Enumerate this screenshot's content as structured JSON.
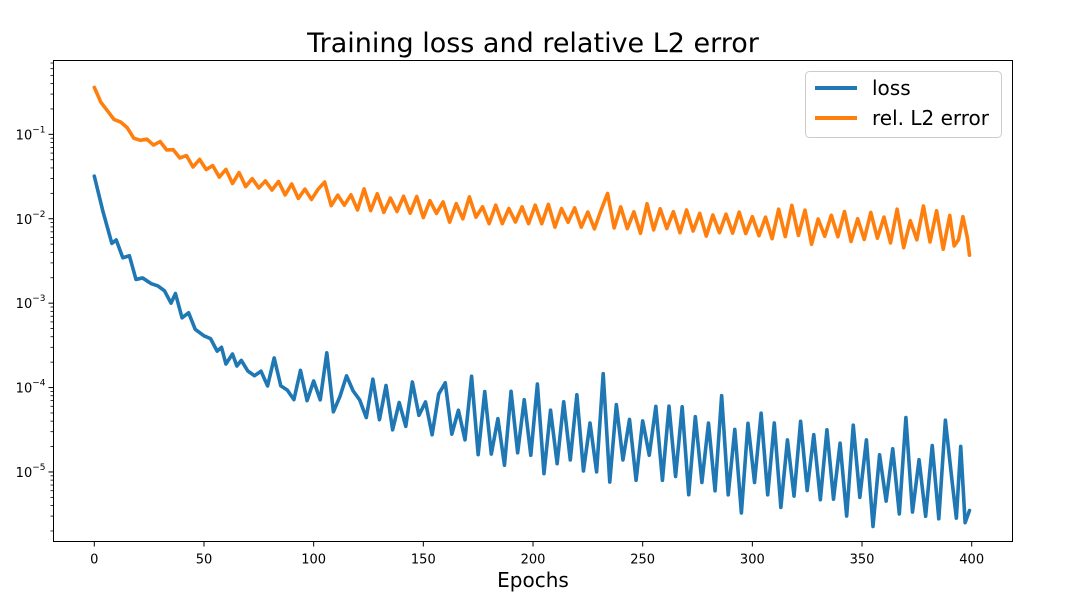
{
  "chart_data": {
    "type": "line",
    "title": "Training loss and relative L2 error",
    "xlabel": "Epochs",
    "ylabel": "",
    "yscale": "log",
    "xlim": [
      -18.6,
      418.6
    ],
    "ylim": [
      1.5e-06,
      0.75
    ],
    "xticks": [
      0,
      50,
      100,
      150,
      200,
      250,
      300,
      350,
      400
    ],
    "xtick_labels": [
      "0",
      "50",
      "100",
      "150",
      "200",
      "250",
      "300",
      "350",
      "400"
    ],
    "yticks": [
      0.1,
      0.01,
      0.001,
      0.0001,
      1e-05
    ],
    "ytick_labels": [
      {
        "base": "10",
        "exp": "−1"
      },
      {
        "base": "10",
        "exp": "−2"
      },
      {
        "base": "10",
        "exp": "−3"
      },
      {
        "base": "10",
        "exp": "−4"
      },
      {
        "base": "10",
        "exp": "−5"
      }
    ],
    "grid": false,
    "legend_position": "top-right",
    "series": [
      {
        "name": "loss",
        "color": "#1f77b4",
        "x": [
          0,
          4,
          8,
          10,
          13,
          16,
          19,
          22,
          26,
          29,
          32,
          35,
          37,
          40,
          43,
          46,
          50,
          53,
          56,
          58,
          60,
          63,
          65,
          67,
          70,
          73,
          76,
          79,
          82,
          85,
          88,
          91,
          94,
          97,
          100,
          103,
          106,
          109,
          112,
          115,
          118,
          121,
          124,
          127,
          130,
          133,
          136,
          139,
          142,
          145,
          148,
          151,
          154,
          157,
          160,
          163,
          166,
          169,
          172,
          175,
          178,
          181,
          184,
          187,
          190,
          193,
          196,
          199,
          202,
          205,
          208,
          211,
          214,
          217,
          220,
          223,
          226,
          229,
          232,
          235,
          238,
          241,
          244,
          247,
          250,
          253,
          256,
          259,
          262,
          265,
          268,
          271,
          274,
          277,
          280,
          283,
          286,
          289,
          292,
          295,
          298,
          301,
          304,
          307,
          310,
          313,
          316,
          319,
          322,
          325,
          328,
          331,
          334,
          337,
          340,
          343,
          346,
          349,
          352,
          355,
          358,
          361,
          364,
          367,
          370,
          373,
          376,
          379,
          382,
          385,
          388,
          391,
          393,
          395,
          397,
          399
        ],
        "values": [
          0.032,
          0.011,
          0.0056,
          0.005,
          0.0037,
          0.0034,
          0.002,
          0.0019,
          0.0017,
          0.0016,
          0.0014,
          0.001,
          0.0013,
          0.00067,
          0.00077,
          0.00049,
          0.00041,
          0.00038,
          0.00027,
          0.0003,
          0.00019,
          0.00025,
          0.00018,
          0.00021,
          0.00014,
          0.000155,
          0.00013,
          0.00012,
          0.0002,
          0.00011,
          0.0001,
          7.2e-05,
          0.00016,
          7e-05,
          7.9e-05,
          9e-05,
          0.00023,
          6.5e-05,
          7.5e-05,
          6.9e-05,
          0.000115,
          4.5e-05,
          8.8e-05,
          5e-05,
          6.6e-05,
          5.3e-05,
          6.3e-05,
          4.2e-05,
          5.5e-05,
          5.2e-05,
          5.9e-05,
          3.8e-05,
          5.5e-05,
          4.2e-05,
          3.6e-05,
          5.6e-05,
          3.4e-05,
          3.8e-05,
          4.3e-05,
          3.2e-05,
          4.5e-05,
          2.9e-05,
          3.4e-05,
          2.4e-05,
          3.2e-05,
          3e-05,
          3.6e-05,
          2.5e-05,
          3.1e-05,
          2.4e-05,
          3.4e-05,
          2.5e-05,
          2.7e-05,
          2.2e-05,
          2.6e-05,
          2.3e-05,
          2.4e-05,
          2e-05,
          2.6e-05,
          1.7e-05,
          2.5e-05,
          2.2e-05,
          2.1e-05,
          2e-05,
          1.8e-05,
          2.5e-05,
          1.5e-05,
          2e-05,
          1.9e-05,
          1.4e-05,
          2.1e-05,
          1.7e-05,
          1.8e-05,
          1.5e-05,
          1.9e-05,
          1.5e-05,
          1.6e-05,
          1.2e-05,
          1.6e-05,
          1.3e-05,
          1.5e-05,
          1.5e-05,
          1.4e-05,
          1.2e-05,
          1.35e-05,
          1.2e-05,
          1.2e-05,
          1.3e-05,
          1e-05,
          1.2e-05,
          1.1e-05,
          1.05e-05,
          1e-05,
          9.5e-06,
          1.1e-05,
          9.5e-06,
          9e-06,
          1e-05,
          8.5e-06,
          9e-06,
          8e-06,
          9e-06,
          7.5e-06,
          8e-06,
          7e-06,
          7.5e-06,
          7e-06,
          7.5e-06,
          6.5e-06,
          7e-06,
          6.5e-06,
          4e-06,
          4.5e-06,
          8e-06,
          5e-06,
          3.5e-06
        ],
        "noise": [
          0,
          0.04,
          -0.04,
          0.05,
          -0.03,
          0.03,
          -0.02,
          0.02,
          0,
          0,
          0,
          0,
          0,
          0,
          0,
          0,
          0,
          0,
          0,
          0,
          0,
          0,
          0,
          0,
          0.05,
          -0.05,
          0.08,
          -0.06,
          0.05,
          -0.02,
          -0.03,
          0,
          0,
          0,
          0.18,
          -0.1,
          0.05,
          -0.1,
          0.02,
          0.3,
          -0.1,
          0.2,
          -0.3,
          0.4,
          -0.2,
          0.3,
          -0.3,
          0.2,
          -0.2,
          0.35,
          -0.1,
          0.25,
          -0.3,
          0.3,
          0.5,
          -0.3,
          0.2,
          -0.2,
          0.5,
          -0.3,
          0.3,
          -0.25,
          0.1,
          -0.3,
          0.45,
          -0.25,
          0.3,
          -0.2,
          0.55,
          -0.4,
          0.2,
          -0.3,
          0.4,
          -0.2,
          0.5,
          -0.35,
          0.2,
          -0.3,
          0.75,
          -0.35,
          0.4,
          -0.2,
          0.3,
          -0.4,
          0.35,
          -0.2,
          0.6,
          -0.4,
          0.5,
          -0.2,
          0.45,
          -0.5,
          0.4,
          -0.3,
          0.3,
          -0.4,
          0.7,
          -0.35,
          0.3,
          -0.6,
          0.4,
          -0.3,
          0.55,
          -0.35,
          0.45,
          -0.5,
          0.3,
          -0.4,
          0.6,
          -0.3,
          0.4,
          -0.35,
          0.5,
          -0.3,
          0.3,
          -0.5,
          0.6,
          -0.3,
          0.45,
          -0.6,
          0.3,
          -0.3,
          0.4,
          -0.4,
          0.8,
          -0.35,
          0.3,
          -0.4,
          0.5,
          -0.4,
          0.8,
          0.3,
          -0.2,
          0.4,
          -0.3,
          0
        ]
      },
      {
        "name": "rel. L2 error",
        "color": "#ff7f0e",
        "x": [
          0,
          3,
          6,
          9,
          12,
          15,
          18,
          21,
          24,
          27,
          30,
          33,
          36,
          39,
          42,
          45,
          48,
          51,
          54,
          57,
          60,
          63,
          66,
          69,
          72,
          75,
          78,
          81,
          84,
          87,
          90,
          93,
          96,
          99,
          102,
          105,
          108,
          111,
          114,
          117,
          120,
          123,
          126,
          129,
          132,
          135,
          138,
          141,
          144,
          147,
          150,
          153,
          156,
          159,
          162,
          165,
          168,
          171,
          174,
          177,
          180,
          183,
          186,
          189,
          192,
          195,
          198,
          201,
          204,
          207,
          210,
          213,
          216,
          219,
          222,
          225,
          228,
          231,
          234,
          237,
          240,
          243,
          246,
          249,
          252,
          255,
          258,
          261,
          264,
          267,
          270,
          273,
          276,
          279,
          282,
          285,
          288,
          291,
          294,
          297,
          300,
          303,
          306,
          309,
          312,
          315,
          318,
          321,
          324,
          327,
          330,
          333,
          336,
          339,
          342,
          345,
          348,
          351,
          354,
          357,
          360,
          363,
          366,
          369,
          372,
          375,
          378,
          381,
          384,
          387,
          390,
          392,
          394,
          396,
          398,
          399
        ],
        "values": [
          0.36,
          0.24,
          0.19,
          0.15,
          0.14,
          0.12,
          0.09,
          0.085,
          0.08,
          0.08,
          0.075,
          0.07,
          0.06,
          0.055,
          0.05,
          0.045,
          0.045,
          0.042,
          0.038,
          0.035,
          0.032,
          0.03,
          0.03,
          0.027,
          0.026,
          0.026,
          0.025,
          0.024,
          0.023,
          0.022,
          0.021,
          0.02,
          0.02,
          0.019,
          0.019,
          0.018,
          0.018,
          0.017,
          0.017,
          0.016,
          0.016,
          0.016,
          0.015,
          0.015,
          0.015,
          0.014,
          0.014,
          0.014,
          0.014,
          0.013,
          0.013,
          0.013,
          0.013,
          0.012,
          0.012,
          0.012,
          0.012,
          0.012,
          0.012,
          0.011,
          0.011,
          0.011,
          0.011,
          0.011,
          0.011,
          0.011,
          0.011,
          0.011,
          0.0105,
          0.0105,
          0.0105,
          0.0105,
          0.0102,
          0.0102,
          0.01,
          0.01,
          0.01,
          0.01,
          0.01,
          0.0098,
          0.0098,
          0.0096,
          0.0096,
          0.0095,
          0.0095,
          0.0093,
          0.0093,
          0.0092,
          0.0092,
          0.009,
          0.009,
          0.009,
          0.0088,
          0.0088,
          0.0088,
          0.0086,
          0.0086,
          0.0085,
          0.0085,
          0.0084,
          0.0084,
          0.0083,
          0.0083,
          0.0082,
          0.0082,
          0.0081,
          0.0081,
          0.008,
          0.008,
          0.0079,
          0.0079,
          0.0078,
          0.0078,
          0.0077,
          0.0077,
          0.0076,
          0.0076,
          0.0075,
          0.0075,
          0.0074,
          0.0074,
          0.0073,
          0.0073,
          0.0072,
          0.0072,
          0.0071,
          0.0071,
          0.007,
          0.007,
          0.0069,
          0.0069,
          0.006,
          0.0045,
          0.0075,
          0.006,
          0.0037
        ],
        "noise": [
          0,
          0,
          0,
          0,
          0,
          0,
          0,
          0,
          0.04,
          -0.03,
          0.04,
          -0.03,
          0.04,
          -0.02,
          0.05,
          -0.04,
          0.05,
          -0.04,
          0.05,
          -0.05,
          0.08,
          -0.06,
          0.07,
          -0.05,
          0.06,
          -0.05,
          0.05,
          -0.04,
          0.08,
          -0.06,
          0.09,
          -0.06,
          0.05,
          -0.05,
          0.07,
          0.18,
          -0.1,
          0.05,
          -0.07,
          0.08,
          -0.1,
          0.15,
          -0.08,
          0.12,
          -0.1,
          0.1,
          -0.06,
          0.12,
          -0.08,
          0.15,
          -0.1,
          0.1,
          -0.05,
          0.12,
          -0.12,
          0.1,
          -0.08,
          0.18,
          -0.06,
          0.1,
          -0.1,
          0.12,
          -0.1,
          0.08,
          -0.08,
          0.1,
          -0.1,
          0.12,
          -0.08,
          0.15,
          -0.12,
          0.1,
          -0.05,
          0.12,
          -0.1,
          0.08,
          -0.12,
          0.1,
          0.3,
          -0.1,
          0.15,
          -0.1,
          0.1,
          -0.15,
          0.2,
          -0.1,
          0.15,
          -0.08,
          0.12,
          -0.12,
          0.15,
          -0.1,
          0.12,
          -0.15,
          0.1,
          -0.1,
          0.12,
          -0.1,
          0.15,
          -0.1,
          0.1,
          -0.12,
          0.1,
          -0.15,
          0.2,
          -0.12,
          0.25,
          -0.1,
          0.2,
          -0.2,
          0.1,
          -0.1,
          0.15,
          -0.1,
          0.2,
          -0.15,
          0.12,
          -0.12,
          0.2,
          -0.1,
          0.15,
          -0.15,
          0.25,
          -0.2,
          0.12,
          -0.1,
          0.3,
          -0.12,
          0.25,
          -0.2,
          0.2,
          -0.1,
          0.1,
          0.15,
          0
        ]
      }
    ]
  }
}
